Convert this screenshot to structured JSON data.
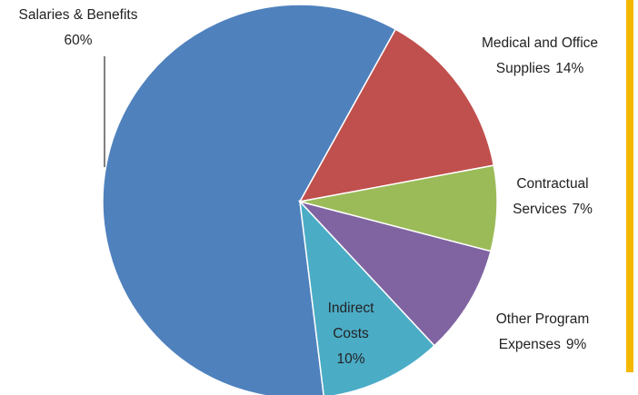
{
  "chart_data": {
    "type": "pie",
    "categories": [
      "Salaries & Benefits",
      "Medical and Office Supplies",
      "Contractual Services",
      "Other Program Expenses",
      "Indirect Costs"
    ],
    "values": [
      60,
      14,
      7,
      9,
      10
    ],
    "value_labels": [
      "60%",
      "14%",
      "7%",
      "9%",
      "10%"
    ],
    "colors": [
      "#4f81bd",
      "#c0504d",
      "#9bbb59",
      "#8064a2",
      "#4bacc6"
    ]
  }
}
